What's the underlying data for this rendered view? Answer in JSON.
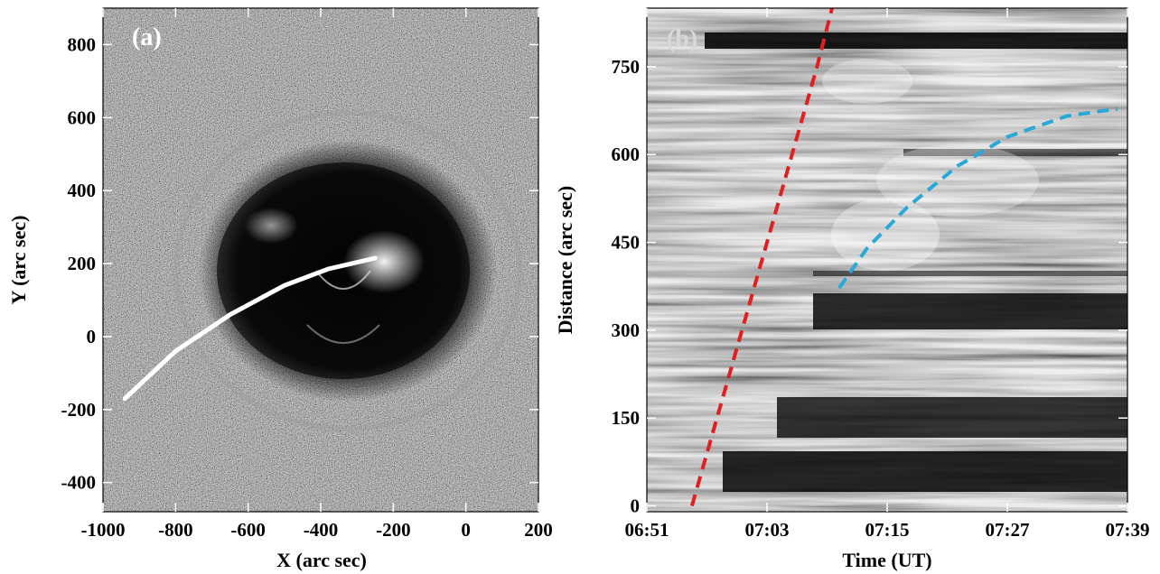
{
  "figure": {
    "panels": [
      {
        "id": "a",
        "panel_label": "(a)",
        "xlabel": "X (arc sec)",
        "ylabel": "Y (arc sec)",
        "x_ticks": [
          "-1000",
          "-800",
          "-600",
          "-400",
          "-200",
          "0",
          "200"
        ],
        "y_ticks": [
          "800",
          "600",
          "400",
          "200",
          "0",
          "-200",
          "-400"
        ],
        "xlim": [
          -1000,
          200
        ],
        "ylim": [
          -480,
          900
        ],
        "image": "running-difference EUV image (noise background, dark dimming region around the flare site)",
        "overlay_path": {
          "name": "slice-path",
          "color": "#ffffff",
          "points": [
            [
              -940,
              -170
            ],
            [
              -800,
              -40
            ],
            [
              -650,
              60
            ],
            [
              -500,
              140
            ],
            [
              -380,
              185
            ],
            [
              -250,
              215
            ]
          ]
        }
      },
      {
        "id": "b",
        "panel_label": "(b)",
        "xlabel": "Time (UT)",
        "ylabel": "Distance (arc sec)",
        "x_ticks": [
          "06:51",
          "07:03",
          "07:15",
          "07:27",
          "07:39"
        ],
        "y_ticks": [
          "750",
          "600",
          "450",
          "300",
          "150",
          "0"
        ],
        "xlim_minutes": [
          0,
          48
        ],
        "ylim": [
          -10,
          850
        ],
        "image": "time-distance stack plot (grayscale horizontal streaks)",
        "fits": [
          {
            "name": "red-dashed-fit",
            "color": "#e02020",
            "points": [
              [
                4.5,
                0
              ],
              [
                7,
                150
              ],
              [
                9.5,
                300
              ],
              [
                12,
                450
              ],
              [
                14.5,
                600
              ],
              [
                17,
                750
              ],
              [
                18.5,
                850
              ]
            ]
          },
          {
            "name": "blue-dashed-fit",
            "color": "#2aa8d8",
            "points": [
              [
                19.2,
                372
              ],
              [
                22,
                440
              ],
              [
                26,
                510
              ],
              [
                31,
                580
              ],
              [
                36,
                630
              ],
              [
                42,
                666
              ],
              [
                47,
                678
              ]
            ]
          }
        ]
      }
    ]
  }
}
